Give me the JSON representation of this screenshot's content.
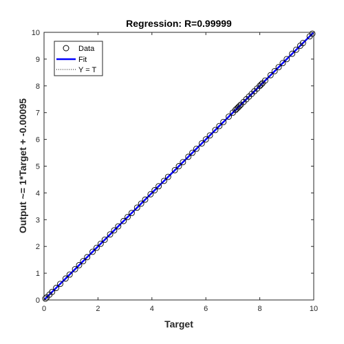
{
  "chart_data": {
    "type": "scatter",
    "title": "Regression: R=0.99999",
    "xlabel": "Target",
    "ylabel": "Output ~= 1*Target + -0.00095",
    "xlim": [
      0,
      10
    ],
    "ylim": [
      0,
      10
    ],
    "xticks": [
      "0",
      "2",
      "4",
      "6",
      "8",
      "10"
    ],
    "yticks": [
      "0",
      "1",
      "2",
      "3",
      "4",
      "5",
      "6",
      "7",
      "8",
      "9",
      "10"
    ],
    "grid": false,
    "legend_position": "top-left",
    "fit": {
      "slope": 1,
      "intercept": -0.00095
    },
    "series": [
      {
        "name": "Data",
        "style": "marker",
        "color": "#000000",
        "x": [
          0.05,
          0.1,
          0.2,
          0.3,
          0.45,
          0.6,
          0.8,
          0.95,
          1.15,
          1.3,
          1.45,
          1.6,
          1.8,
          1.95,
          2.1,
          2.25,
          2.45,
          2.6,
          2.75,
          2.95,
          3.1,
          3.25,
          3.45,
          3.6,
          3.75,
          3.95,
          4.1,
          4.25,
          4.45,
          4.6,
          4.85,
          5.0,
          5.15,
          5.35,
          5.5,
          5.65,
          5.85,
          6.0,
          6.15,
          6.35,
          6.5,
          6.65,
          6.85,
          7.0,
          7.1,
          7.15,
          7.2,
          7.25,
          7.3,
          7.4,
          7.5,
          7.6,
          7.7,
          7.8,
          7.9,
          8.0,
          8.05,
          8.1,
          8.2,
          8.4,
          8.55,
          8.7,
          8.85,
          9.0,
          9.2,
          9.35,
          9.5,
          9.6,
          9.85,
          9.95
        ],
        "y": [
          0.05,
          0.1,
          0.2,
          0.3,
          0.45,
          0.6,
          0.8,
          0.95,
          1.15,
          1.3,
          1.45,
          1.6,
          1.8,
          1.95,
          2.1,
          2.25,
          2.45,
          2.6,
          2.75,
          2.95,
          3.1,
          3.25,
          3.45,
          3.6,
          3.75,
          3.95,
          4.1,
          4.25,
          4.45,
          4.6,
          4.85,
          5.0,
          5.15,
          5.35,
          5.5,
          5.65,
          5.85,
          6.0,
          6.15,
          6.35,
          6.5,
          6.65,
          6.85,
          7.0,
          7.1,
          7.15,
          7.2,
          7.25,
          7.3,
          7.4,
          7.5,
          7.6,
          7.7,
          7.8,
          7.9,
          8.0,
          8.05,
          8.1,
          8.2,
          8.4,
          8.55,
          8.7,
          8.85,
          9.0,
          9.2,
          9.35,
          9.5,
          9.6,
          9.85,
          9.95
        ]
      },
      {
        "name": "Fit",
        "style": "solid-line",
        "color": "#0000ff",
        "x": [
          0,
          10
        ],
        "y": [
          -0.00095,
          9.99905
        ]
      },
      {
        "name": "Y = T",
        "style": "dotted-line",
        "color": "#000000",
        "x": [
          0,
          10
        ],
        "y": [
          0,
          10
        ]
      }
    ]
  }
}
